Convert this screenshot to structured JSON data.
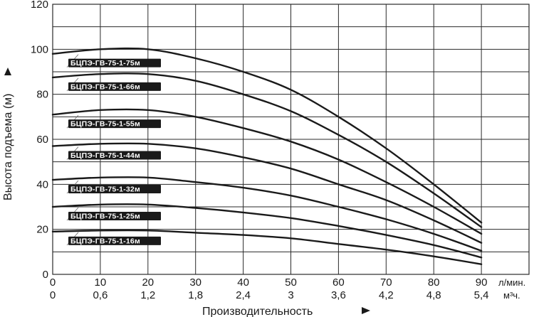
{
  "chart_data": {
    "type": "line",
    "xlabel": "Производительность",
    "ylabel": "Высота подъема (м)",
    "x_unit_primary": "л/мин.",
    "x_unit_secondary": "м³ч.",
    "x_ticks_primary": [
      "0",
      "10",
      "20",
      "30",
      "40",
      "50",
      "60",
      "70",
      "80",
      "90"
    ],
    "x_ticks_secondary": [
      "0",
      "0,6",
      "1,2",
      "1,8",
      "2,4",
      "3",
      "3,6",
      "4,2",
      "4,8",
      "5,4"
    ],
    "y_ticks": [
      "0",
      "20",
      "40",
      "60",
      "80",
      "100",
      "120"
    ],
    "xlim": [
      0,
      100
    ],
    "ylim": [
      0,
      120
    ],
    "grid": true,
    "x": [
      0,
      10,
      20,
      30,
      40,
      50,
      60,
      70,
      80,
      90
    ],
    "series": [
      {
        "name": "БЦПЭ-ГВ-75-1-75м",
        "values": [
          98,
          100,
          100,
          96,
          90,
          82,
          70,
          56,
          40,
          23
        ]
      },
      {
        "name": "БЦПЭ-ГВ-75-1-66м",
        "values": [
          87.5,
          89,
          89,
          86,
          80,
          72.5,
          62,
          50,
          36,
          21
        ]
      },
      {
        "name": "БЦПЭ-ГВ-75-1-55м",
        "values": [
          71,
          73,
          73,
          70,
          65,
          59,
          51,
          41,
          30,
          18
        ]
      },
      {
        "name": "БЦПЭ-ГВ-75-1-44м",
        "values": [
          57,
          58,
          58,
          56,
          52,
          47,
          40,
          33,
          24,
          14
        ]
      },
      {
        "name": "БЦПЭ-ГВ-75-1-32м",
        "values": [
          42,
          43,
          43,
          41,
          38.5,
          35,
          30,
          24.5,
          18,
          10.5
        ]
      },
      {
        "name": "БЦПЭ-ГВ-75-1-25м",
        "values": [
          30,
          31,
          31,
          29.5,
          27.5,
          25,
          21.5,
          17.5,
          13,
          7.5
        ]
      },
      {
        "name": "БЦПЭ-ГВ-75-1-16м",
        "values": [
          19,
          19.5,
          19.5,
          18.5,
          17.5,
          16,
          13.5,
          11,
          8,
          4.5
        ]
      }
    ],
    "colors": {
      "line": "#1a1a1a",
      "grid": "#2a2a2a",
      "label_bg": "#1a1a1a",
      "label_text": "#ffffff"
    }
  }
}
